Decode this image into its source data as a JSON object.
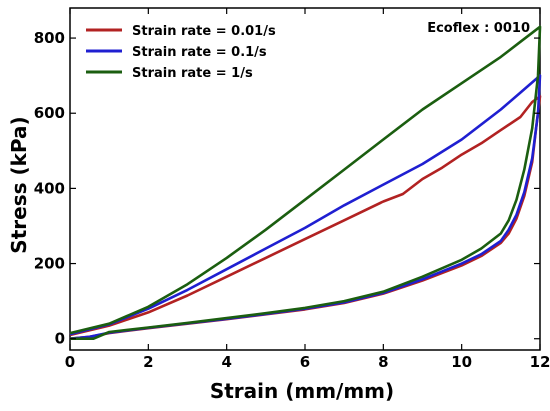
{
  "chart_data": {
    "type": "line",
    "xlabel": "Strain (mm/mm)",
    "ylabel": "Stress (kPa)",
    "xlim": [
      0,
      12
    ],
    "ylim": [
      -30,
      880
    ],
    "xticks": [
      0,
      2,
      4,
      6,
      8,
      10,
      12
    ],
    "yticks": [
      0,
      200,
      400,
      600,
      800
    ],
    "annotation": "Ecoflex : 0010",
    "legend_position": "top-left",
    "series": [
      {
        "name": "Strain rate = 0.01/s",
        "color": "#b22222",
        "points": [
          [
            0,
            10
          ],
          [
            1,
            35
          ],
          [
            2,
            70
          ],
          [
            3,
            115
          ],
          [
            4,
            165
          ],
          [
            5,
            215
          ],
          [
            6,
            265
          ],
          [
            7,
            315
          ],
          [
            8,
            365
          ],
          [
            8.5,
            385
          ],
          [
            9,
            425
          ],
          [
            9.5,
            455
          ],
          [
            10,
            490
          ],
          [
            10.5,
            520
          ],
          [
            11,
            555
          ],
          [
            11.5,
            590
          ],
          [
            11.8,
            630
          ],
          [
            12,
            645
          ],
          [
            11.9,
            560
          ],
          [
            11.8,
            470
          ],
          [
            11.6,
            380
          ],
          [
            11.4,
            320
          ],
          [
            11.2,
            280
          ],
          [
            11,
            255
          ],
          [
            10.5,
            220
          ],
          [
            10,
            195
          ],
          [
            9,
            155
          ],
          [
            8,
            120
          ],
          [
            7,
            95
          ],
          [
            6,
            78
          ],
          [
            5,
            65
          ],
          [
            4,
            52
          ],
          [
            3,
            40
          ],
          [
            2,
            28
          ],
          [
            1,
            15
          ],
          [
            0.5,
            5
          ],
          [
            0,
            0
          ]
        ]
      },
      {
        "name": "Strain rate = 0.1/s",
        "color": "#1f1fd1",
        "points": [
          [
            0,
            12
          ],
          [
            1,
            38
          ],
          [
            2,
            80
          ],
          [
            3,
            130
          ],
          [
            4,
            185
          ],
          [
            5,
            240
          ],
          [
            6,
            295
          ],
          [
            7,
            355
          ],
          [
            8,
            410
          ],
          [
            9,
            465
          ],
          [
            10,
            530
          ],
          [
            11,
            610
          ],
          [
            11.5,
            655
          ],
          [
            12,
            700
          ],
          [
            11.95,
            600
          ],
          [
            11.8,
            480
          ],
          [
            11.6,
            390
          ],
          [
            11.4,
            330
          ],
          [
            11.2,
            290
          ],
          [
            11,
            260
          ],
          [
            10.5,
            225
          ],
          [
            10,
            200
          ],
          [
            9,
            158
          ],
          [
            8,
            122
          ],
          [
            7,
            97
          ],
          [
            6,
            80
          ],
          [
            5,
            66
          ],
          [
            4,
            53
          ],
          [
            3,
            41
          ],
          [
            2,
            29
          ],
          [
            1,
            16
          ],
          [
            0.5,
            5
          ],
          [
            0,
            0
          ]
        ]
      },
      {
        "name": "Strain rate = 1/s",
        "color": "#1b5e10",
        "points": [
          [
            0,
            15
          ],
          [
            1,
            40
          ],
          [
            2,
            85
          ],
          [
            3,
            145
          ],
          [
            4,
            215
          ],
          [
            5,
            290
          ],
          [
            6,
            370
          ],
          [
            7,
            450
          ],
          [
            8,
            530
          ],
          [
            9,
            610
          ],
          [
            10,
            680
          ],
          [
            11,
            750
          ],
          [
            11.5,
            790
          ],
          [
            12,
            830
          ],
          [
            11.95,
            700
          ],
          [
            11.8,
            560
          ],
          [
            11.6,
            450
          ],
          [
            11.4,
            370
          ],
          [
            11.2,
            315
          ],
          [
            11,
            280
          ],
          [
            10.5,
            240
          ],
          [
            10,
            210
          ],
          [
            9,
            165
          ],
          [
            8,
            125
          ],
          [
            7,
            100
          ],
          [
            6,
            82
          ],
          [
            5,
            68
          ],
          [
            4,
            55
          ],
          [
            3,
            42
          ],
          [
            2,
            30
          ],
          [
            1,
            18
          ],
          [
            0.6,
            0
          ],
          [
            0,
            0
          ]
        ]
      }
    ]
  }
}
